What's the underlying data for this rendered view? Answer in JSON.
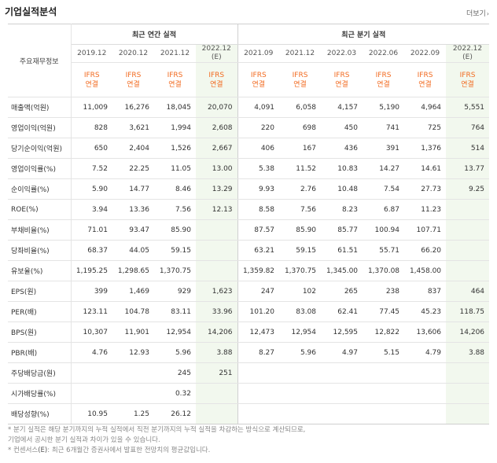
{
  "header": {
    "title": "기업실적분석",
    "more_label": "더보기",
    "more_arrow": "›"
  },
  "table": {
    "row_header_label": "주요재무정보",
    "annual_group_label": "최근 연간 실적",
    "quarter_group_label": "최근 분기 실적",
    "periods": [
      "2019.12",
      "2020.12",
      "2021.12",
      "2022.12",
      "2021.09",
      "2021.12",
      "2022.03",
      "2022.06",
      "2022.09",
      "2022.12"
    ],
    "estimate_mark": "(E)",
    "ifrs_line1": "IFRS",
    "ifrs_line2": "연결",
    "rows": [
      {
        "label": "매출액(억원)",
        "values": [
          "11,009",
          "16,276",
          "18,045",
          "20,070",
          "4,091",
          "6,058",
          "4,157",
          "5,190",
          "4,964",
          "5,551"
        ]
      },
      {
        "label": "영업이익(억원)",
        "values": [
          "828",
          "3,621",
          "1,994",
          "2,608",
          "220",
          "698",
          "450",
          "741",
          "725",
          "764"
        ]
      },
      {
        "label": "당기순이익(억원)",
        "values": [
          "650",
          "2,404",
          "1,526",
          "2,667",
          "406",
          "167",
          "436",
          "391",
          "1,376",
          "514"
        ]
      },
      {
        "label": "영업이익률(%)",
        "values": [
          "7.52",
          "22.25",
          "11.05",
          "13.00",
          "5.38",
          "11.52",
          "10.83",
          "14.27",
          "14.61",
          "13.77"
        ]
      },
      {
        "label": "순이익률(%)",
        "values": [
          "5.90",
          "14.77",
          "8.46",
          "13.29",
          "9.93",
          "2.76",
          "10.48",
          "7.54",
          "27.73",
          "9.25"
        ]
      },
      {
        "label": "ROE(%)",
        "values": [
          "3.94",
          "13.36",
          "7.56",
          "12.13",
          "8.58",
          "7.56",
          "8.23",
          "6.87",
          "11.23",
          ""
        ]
      },
      {
        "label": "부채비율(%)",
        "values": [
          "71.01",
          "93.47",
          "85.90",
          "",
          "87.57",
          "85.90",
          "85.77",
          "100.94",
          "107.71",
          ""
        ]
      },
      {
        "label": "당좌비율(%)",
        "values": [
          "68.37",
          "44.05",
          "59.15",
          "",
          "63.21",
          "59.15",
          "61.51",
          "55.71",
          "66.20",
          ""
        ]
      },
      {
        "label": "유보율(%)",
        "values": [
          "1,195.25",
          "1,298.65",
          "1,370.75",
          "",
          "1,359.82",
          "1,370.75",
          "1,345.00",
          "1,370.08",
          "1,458.00",
          ""
        ]
      },
      {
        "label": "EPS(원)",
        "values": [
          "399",
          "1,469",
          "929",
          "1,623",
          "247",
          "102",
          "265",
          "238",
          "837",
          "464"
        ]
      },
      {
        "label": "PER(배)",
        "values": [
          "123.11",
          "104.78",
          "83.11",
          "33.96",
          "101.20",
          "83.08",
          "62.41",
          "77.45",
          "45.23",
          "118.75"
        ]
      },
      {
        "label": "BPS(원)",
        "values": [
          "10,307",
          "11,901",
          "12,954",
          "14,206",
          "12,473",
          "12,954",
          "12,595",
          "12,822",
          "13,606",
          "14,206"
        ]
      },
      {
        "label": "PBR(배)",
        "values": [
          "4.76",
          "12.93",
          "5.96",
          "3.88",
          "8.27",
          "5.96",
          "4.97",
          "5.15",
          "4.79",
          "3.88"
        ]
      },
      {
        "label": "주당배당금(원)",
        "values": [
          "",
          "",
          "245",
          "251",
          "",
          "",
          "",
          "",
          "",
          ""
        ]
      },
      {
        "label": "시가배당률(%)",
        "values": [
          "",
          "",
          "0.32",
          "",
          "",
          "",
          "",
          "",
          "",
          ""
        ]
      },
      {
        "label": "배당성향(%)",
        "values": [
          "10.95",
          "1.25",
          "26.12",
          "",
          "",
          "",
          "",
          "",
          "",
          ""
        ]
      }
    ]
  },
  "notes": {
    "line1": "* 분기 실적은 해당 분기까지의 누적 실적에서 직전 분기까지의 누적 실적을 차감하는 방식으로 계산되므로,",
    "line2": "  기업에서 공시한 분기 실적과 차이가 있을 수 있습니다.",
    "line3_prefix": "* 컨센서스",
    "line3_mark": "(E)",
    "line3_suffix": ": 최근 6개월간 증권사에서 발표한 전망치의 평균값입니다."
  },
  "colors": {
    "ifrs_orange": "#f26b21",
    "estimate_bg": "#f2f8ee"
  }
}
